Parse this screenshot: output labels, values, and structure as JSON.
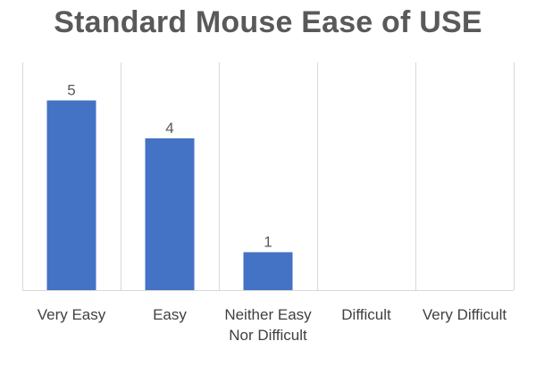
{
  "chart_data": {
    "type": "bar",
    "title": "Standard Mouse Ease of USE",
    "categories": [
      [
        "Very Easy"
      ],
      [
        "Easy"
      ],
      [
        "Neither Easy",
        "Nor Difficult"
      ],
      [
        "Difficult"
      ],
      [
        "Very Difficult"
      ]
    ],
    "values": [
      5,
      4,
      1,
      0,
      0
    ],
    "data_labels": [
      "5",
      "4",
      "1",
      "",
      ""
    ],
    "ylim": [
      0,
      6
    ],
    "bar_color": "#4472C4",
    "grid": "vertical separators between categories",
    "legend": "none"
  }
}
